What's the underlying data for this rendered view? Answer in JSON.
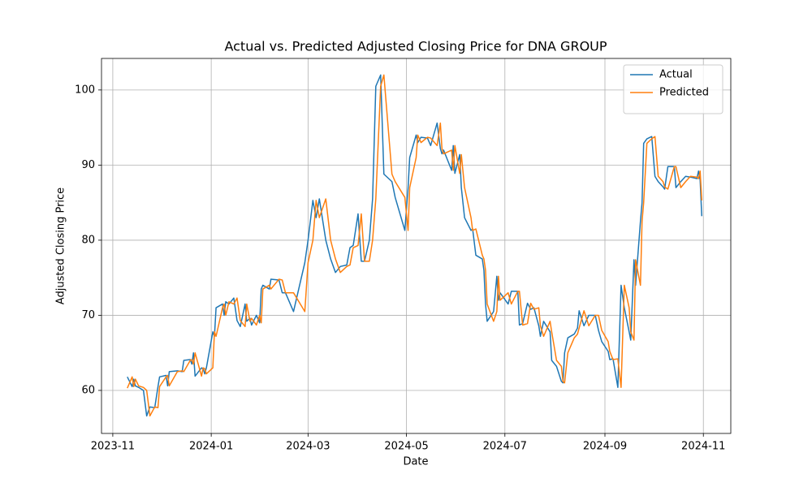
{
  "chart_data": {
    "type": "line",
    "title": "Actual vs. Predicted Adjusted Closing Price for DNA GROUP",
    "x_label": "Date",
    "y_label": "Adjusted Closing Price",
    "x": [
      "2023-11-10",
      "2023-11-13",
      "2023-11-14",
      "2023-11-15",
      "2023-11-17",
      "2023-11-20",
      "2023-11-22",
      "2023-11-24",
      "2023-11-27",
      "2023-11-29",
      "2023-11-30",
      "2023-12-04",
      "2023-12-05",
      "2023-12-06",
      "2023-12-11",
      "2023-12-14",
      "2023-12-15",
      "2023-12-19",
      "2023-12-20",
      "2023-12-21",
      "2023-12-22",
      "2023-12-26",
      "2023-12-27",
      "2023-12-28",
      "2023-12-29",
      "2024-01-02",
      "2024-01-03",
      "2024-01-04",
      "2024-01-08",
      "2024-01-09",
      "2024-01-10",
      "2024-01-12",
      "2024-01-15",
      "2024-01-17",
      "2024-01-19",
      "2024-01-22",
      "2024-01-23",
      "2024-01-25",
      "2024-01-26",
      "2024-01-29",
      "2024-01-31",
      "2024-02-01",
      "2024-02-02",
      "2024-02-06",
      "2024-02-07",
      "2024-02-12",
      "2024-02-14",
      "2024-02-16",
      "2024-02-21",
      "2024-02-28",
      "2024-03-01",
      "2024-03-04",
      "2024-03-06",
      "2024-03-08",
      "2024-03-12",
      "2024-03-15",
      "2024-03-18",
      "2024-03-21",
      "2024-03-25",
      "2024-03-27",
      "2024-03-29",
      "2024-04-01",
      "2024-04-03",
      "2024-04-05",
      "2024-04-08",
      "2024-04-10",
      "2024-04-12",
      "2024-04-15",
      "2024-04-17",
      "2024-04-22",
      "2024-04-24",
      "2024-04-30",
      "2024-05-02",
      "2024-05-03",
      "2024-05-07",
      "2024-05-08",
      "2024-05-10",
      "2024-05-14",
      "2024-05-16",
      "2024-05-20",
      "2024-05-22",
      "2024-05-23",
      "2024-05-24",
      "2024-05-29",
      "2024-05-30",
      "2024-05-31",
      "2024-06-03",
      "2024-06-04",
      "2024-06-06",
      "2024-06-10",
      "2024-06-11",
      "2024-06-13",
      "2024-06-17",
      "2024-06-18",
      "2024-06-19",
      "2024-06-20",
      "2024-06-24",
      "2024-06-26",
      "2024-06-27",
      "2024-06-28",
      "2024-07-03",
      "2024-07-05",
      "2024-07-09",
      "2024-07-10",
      "2024-07-12",
      "2024-07-15",
      "2024-07-17",
      "2024-07-19",
      "2024-07-22",
      "2024-07-23",
      "2024-07-25",
      "2024-07-29",
      "2024-07-30",
      "2024-08-02",
      "2024-08-05",
      "2024-08-06",
      "2024-08-07",
      "2024-08-09",
      "2024-08-13",
      "2024-08-15",
      "2024-08-16",
      "2024-08-19",
      "2024-08-22",
      "2024-08-26",
      "2024-08-28",
      "2024-08-30",
      "2024-09-03",
      "2024-09-04",
      "2024-09-06",
      "2024-09-09",
      "2024-09-11",
      "2024-09-13",
      "2024-09-16",
      "2024-09-17",
      "2024-09-19",
      "2024-09-20",
      "2024-09-23",
      "2024-09-24",
      "2024-09-25",
      "2024-09-27",
      "2024-09-30",
      "2024-10-02",
      "2024-10-04",
      "2024-10-07",
      "2024-10-08",
      "2024-10-10",
      "2024-10-14",
      "2024-10-15",
      "2024-10-18",
      "2024-10-21",
      "2024-10-24",
      "2024-10-28",
      "2024-10-29",
      "2024-10-30",
      "2024-10-31"
    ],
    "series": [
      {
        "name": "Actual",
        "color": "#1f77b4",
        "values": [
          61.8,
          60.5,
          61.5,
          60.6,
          60.4,
          60.0,
          56.6,
          57.8,
          57.7,
          60.5,
          61.8,
          62.0,
          60.6,
          62.5,
          62.6,
          62.5,
          64.0,
          64.1,
          63.5,
          65.0,
          61.9,
          63.0,
          62.9,
          62.2,
          63.0,
          67.8,
          67.2,
          71.0,
          71.5,
          70.0,
          71.8,
          71.5,
          72.3,
          69.3,
          68.5,
          71.5,
          69.2,
          69.6,
          68.7,
          70.0,
          69.0,
          73.5,
          74.0,
          73.5,
          74.8,
          74.7,
          73.0,
          73.0,
          70.5,
          77.0,
          80.0,
          85.3,
          83.0,
          85.5,
          80.0,
          77.5,
          75.7,
          76.5,
          76.7,
          79.0,
          79.3,
          83.5,
          77.2,
          77.2,
          80.0,
          85.5,
          100.5,
          102.0,
          88.8,
          87.8,
          85.7,
          81.3,
          87.0,
          91.0,
          94.0,
          93.0,
          93.7,
          93.6,
          92.6,
          95.6,
          92.2,
          91.5,
          92.0,
          89.3,
          92.6,
          88.9,
          91.4,
          87.0,
          83.0,
          81.3,
          81.5,
          78.0,
          77.5,
          76.0,
          71.5,
          69.2,
          70.5,
          75.2,
          72.0,
          73.0,
          71.5,
          73.2,
          73.2,
          68.7,
          68.9,
          71.6,
          70.8,
          71.0,
          68.6,
          67.2,
          69.2,
          67.8,
          64.0,
          63.2,
          61.2,
          61.0,
          65.0,
          67.0,
          67.5,
          68.3,
          70.6,
          68.6,
          70.0,
          70.0,
          68.0,
          66.5,
          65.2,
          64.1,
          64.2,
          60.4,
          74.0,
          71.0,
          67.8,
          66.7,
          77.4,
          74.0,
          82.5,
          85.0,
          92.9,
          93.5,
          93.8,
          88.5,
          87.8,
          87.1,
          86.8,
          89.8,
          89.8,
          87.0,
          87.8,
          88.5,
          88.4,
          88.2,
          89.2,
          88.0,
          83.2
        ]
      },
      {
        "name": "Predicted",
        "color": "#ff7f0e",
        "values": [
          60.3,
          61.8,
          60.5,
          61.5,
          60.6,
          60.4,
          60.0,
          56.6,
          57.8,
          57.7,
          60.5,
          61.8,
          62.0,
          60.6,
          62.5,
          62.6,
          62.5,
          64.0,
          64.1,
          63.5,
          65.0,
          61.9,
          63.0,
          62.9,
          62.2,
          63.0,
          67.8,
          67.2,
          71.0,
          71.5,
          70.0,
          71.8,
          71.5,
          72.3,
          69.3,
          68.5,
          71.5,
          69.2,
          69.6,
          68.7,
          70.0,
          69.0,
          73.5,
          74.0,
          73.5,
          74.8,
          74.7,
          73.0,
          73.0,
          70.5,
          77.0,
          80.0,
          85.3,
          83.0,
          85.5,
          80.0,
          77.5,
          75.7,
          76.5,
          76.7,
          79.0,
          79.3,
          83.5,
          77.2,
          77.2,
          80.0,
          85.5,
          100.5,
          102.0,
          88.8,
          87.8,
          85.7,
          81.3,
          87.0,
          91.0,
          94.0,
          93.0,
          93.7,
          93.6,
          92.6,
          95.6,
          92.2,
          91.5,
          92.0,
          89.3,
          92.6,
          88.9,
          91.4,
          87.0,
          83.0,
          81.3,
          81.5,
          78.0,
          77.5,
          76.0,
          71.5,
          69.2,
          70.5,
          75.2,
          72.0,
          73.0,
          71.5,
          73.2,
          73.2,
          68.7,
          68.9,
          71.6,
          70.8,
          71.0,
          68.6,
          67.2,
          69.2,
          67.8,
          64.0,
          63.2,
          61.2,
          61.0,
          65.0,
          67.0,
          67.5,
          68.3,
          70.6,
          68.6,
          70.0,
          70.0,
          68.0,
          66.5,
          65.2,
          64.1,
          64.2,
          60.4,
          74.0,
          71.0,
          67.8,
          66.7,
          77.4,
          74.0,
          82.5,
          85.0,
          92.9,
          93.5,
          93.8,
          88.5,
          87.8,
          87.1,
          86.8,
          89.8,
          89.8,
          87.0,
          87.8,
          88.5,
          88.4,
          88.2,
          89.2,
          85.3
        ]
      }
    ],
    "xlim": [
      "2023-10-25",
      "2024-11-18"
    ],
    "xticks": [
      "2023-11",
      "2024-01",
      "2024-03",
      "2024-05",
      "2024-07",
      "2024-09",
      "2024-11"
    ],
    "ylim": [
      54.27,
      104.2
    ],
    "yticks": [
      60,
      70,
      80,
      90,
      100
    ],
    "grid": true,
    "legend": "upper right"
  }
}
